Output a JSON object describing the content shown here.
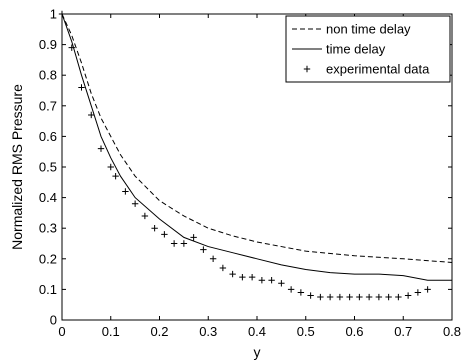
{
  "chart_data": {
    "type": "line",
    "xlabel": "y",
    "ylabel": "Normalized RMS Pressure",
    "xlim": [
      0,
      0.8
    ],
    "ylim": [
      0,
      1
    ],
    "x_ticks": [
      "0",
      "0.1",
      "0.2",
      "0.3",
      "0.4",
      "0.5",
      "0.6",
      "0.7",
      "0.8"
    ],
    "y_ticks": [
      "0",
      "0.1",
      "0.2",
      "0.3",
      "0.4",
      "0.5",
      "0.6",
      "0.7",
      "0.8",
      "0.9",
      "1"
    ],
    "grid": false,
    "legend_position": "top-right",
    "series": [
      {
        "name": "non time delay",
        "style": "dashed",
        "color": "#000000",
        "x": [
          0,
          0.02,
          0.04,
          0.06,
          0.08,
          0.1,
          0.12,
          0.15,
          0.2,
          0.25,
          0.3,
          0.35,
          0.4,
          0.45,
          0.5,
          0.6,
          0.7,
          0.8
        ],
        "y": [
          1.0,
          0.93,
          0.84,
          0.74,
          0.66,
          0.6,
          0.54,
          0.47,
          0.39,
          0.34,
          0.3,
          0.275,
          0.255,
          0.24,
          0.225,
          0.21,
          0.2,
          0.188
        ]
      },
      {
        "name": "time delay",
        "style": "solid",
        "color": "#000000",
        "x": [
          0,
          0.02,
          0.04,
          0.06,
          0.08,
          0.1,
          0.12,
          0.15,
          0.2,
          0.25,
          0.3,
          0.35,
          0.4,
          0.45,
          0.5,
          0.55,
          0.6,
          0.65,
          0.7,
          0.75,
          0.8
        ],
        "y": [
          1.0,
          0.91,
          0.8,
          0.7,
          0.6,
          0.53,
          0.47,
          0.4,
          0.33,
          0.27,
          0.24,
          0.22,
          0.2,
          0.18,
          0.165,
          0.155,
          0.15,
          0.15,
          0.145,
          0.13,
          0.13
        ]
      },
      {
        "name": "experimental data",
        "style": "markers",
        "marker": "+",
        "color": "#000000",
        "x": [
          0,
          0.02,
          0.04,
          0.06,
          0.08,
          0.1,
          0.11,
          0.13,
          0.15,
          0.17,
          0.19,
          0.21,
          0.23,
          0.25,
          0.27,
          0.29,
          0.31,
          0.33,
          0.35,
          0.37,
          0.39,
          0.41,
          0.43,
          0.45,
          0.47,
          0.49,
          0.51,
          0.53,
          0.55,
          0.57,
          0.59,
          0.61,
          0.63,
          0.65,
          0.67,
          0.69,
          0.71,
          0.73,
          0.75
        ],
        "y": [
          1.0,
          0.89,
          0.76,
          0.67,
          0.56,
          0.5,
          0.47,
          0.42,
          0.38,
          0.34,
          0.3,
          0.28,
          0.25,
          0.25,
          0.27,
          0.23,
          0.2,
          0.17,
          0.15,
          0.14,
          0.14,
          0.13,
          0.13,
          0.12,
          0.1,
          0.09,
          0.08,
          0.075,
          0.075,
          0.075,
          0.075,
          0.075,
          0.075,
          0.075,
          0.075,
          0.075,
          0.08,
          0.09,
          0.1
        ]
      }
    ]
  }
}
